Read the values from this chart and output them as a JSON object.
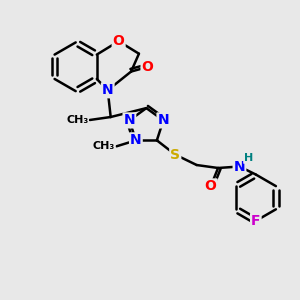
{
  "bg_color": "#e8e8e8",
  "atom_colors": {
    "C": "#000000",
    "N": "#0000ff",
    "O": "#ff0000",
    "S": "#ccaa00",
    "F": "#cc00cc",
    "H": "#008080"
  },
  "bond_color": "#000000",
  "bond_width": 1.8,
  "font_size": 10,
  "figsize": [
    3.0,
    3.0
  ],
  "dpi": 100
}
